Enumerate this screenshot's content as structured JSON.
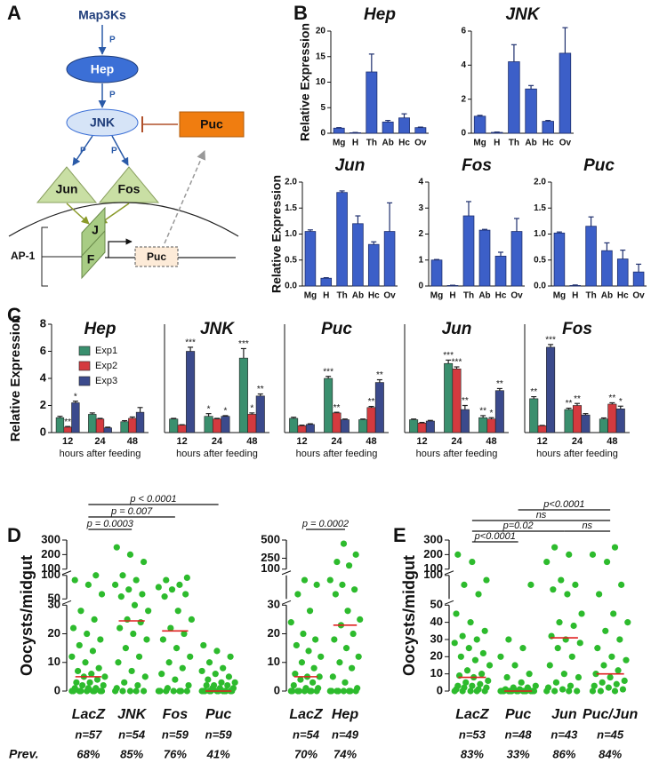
{
  "panel_labels": [
    "A",
    "B",
    "C",
    "D",
    "E"
  ],
  "diagram": {
    "map3ks": "Map3Ks",
    "phospho": [
      "P",
      "P",
      "P",
      "P"
    ],
    "hep": "Hep",
    "jnk": "JNK",
    "puc": "Puc",
    "jun": "Jun",
    "fos": "Fos",
    "ap1": "AP-1",
    "j": "J",
    "f": "F",
    "puc_gene": "Puc"
  },
  "chart_data": [
    {
      "type": "bar",
      "title": "Hep",
      "y_label": "Relative Expression",
      "categories": [
        "Mg",
        "H",
        "Th",
        "Ab",
        "Hc",
        "Ov"
      ],
      "values": [
        1,
        0.1,
        12,
        2.2,
        3,
        1.1
      ],
      "errors": [
        0.1,
        0.05,
        3.5,
        0.3,
        0.8,
        0.1
      ],
      "color": "#3c5fc8",
      "ylim": [
        0,
        20
      ],
      "yticks": [
        0,
        5,
        10,
        15,
        20
      ]
    },
    {
      "type": "bar",
      "title": "JNK",
      "categories": [
        "Mg",
        "H",
        "Th",
        "Ab",
        "Hc",
        "Ov"
      ],
      "values": [
        1,
        0.05,
        4.2,
        2.6,
        0.7,
        4.7
      ],
      "errors": [
        0.05,
        0.02,
        1,
        0.2,
        0.05,
        1.5
      ],
      "color": "#3c5fc8",
      "ylim": [
        0,
        6
      ],
      "yticks": [
        0,
        2,
        4,
        6
      ]
    },
    {
      "type": "bar",
      "title": "Jun",
      "y_label": "Relative Expression",
      "categories": [
        "Mg",
        "H",
        "Th",
        "Ab",
        "Hc",
        "Ov"
      ],
      "values": [
        1.05,
        0.15,
        1.8,
        1.2,
        0.8,
        1.05
      ],
      "errors": [
        0.03,
        0.01,
        0.03,
        0.15,
        0.05,
        0.55
      ],
      "color": "#3c5fc8",
      "ylim": [
        0,
        2
      ],
      "yticks": [
        {
          "value": 0,
          "label": "0.0"
        },
        0.5,
        {
          "value": 1,
          "label": "1.0"
        },
        1.5,
        {
          "value": 2,
          "label": "2.0"
        }
      ]
    },
    {
      "type": "bar",
      "title": "Fos",
      "categories": [
        "Mg",
        "H",
        "Th",
        "Ab",
        "Hc",
        "Ov"
      ],
      "values": [
        1,
        0.02,
        2.7,
        2.15,
        1.15,
        2.1
      ],
      "errors": [
        0.02,
        0.01,
        0.55,
        0.03,
        0.15,
        0.5
      ],
      "color": "#3c5fc8",
      "ylim": [
        0,
        4
      ],
      "yticks": [
        0,
        1,
        2,
        3,
        4
      ]
    },
    {
      "type": "bar",
      "title": "Puc",
      "categories": [
        "Mg",
        "H",
        "Th",
        "Ab",
        "Hc",
        "Ov"
      ],
      "values": [
        1.02,
        0.01,
        1.15,
        0.68,
        0.52,
        0.27
      ],
      "errors": [
        0.02,
        0.01,
        0.18,
        0.15,
        0.17,
        0.15
      ],
      "color": "#3c5fc8",
      "ylim": [
        0,
        2
      ],
      "yticks": [
        {
          "value": 0,
          "label": "0.0"
        },
        0.5,
        {
          "value": 1,
          "label": "1.0"
        },
        1.5,
        {
          "value": 2,
          "label": "2.0"
        }
      ]
    },
    {
      "type": "grouped_bar",
      "title": "Hep",
      "y_label": "Relative Expression",
      "x_label": "hours after feeding",
      "categories": [
        "12",
        "24",
        "48"
      ],
      "ylim": [
        0,
        8
      ],
      "yticks": [
        0,
        2,
        4,
        6,
        8
      ],
      "legend": "upper right",
      "series": [
        {
          "name": "Exp1",
          "color": "#3a8f6e",
          "values": [
            1.1,
            1.35,
            0.8
          ],
          "errors": [
            0.1,
            0.1,
            0.08
          ],
          "annotations": [
            null,
            null,
            null
          ]
        },
        {
          "name": "Exp2",
          "color": "#d43a3f",
          "values": [
            0.4,
            1.0,
            1.05
          ],
          "errors": [
            0.05,
            0.05,
            0.1
          ],
          "annotations": [
            "**",
            null,
            null
          ]
        },
        {
          "name": "Exp3",
          "color": "#3b4a8c",
          "values": [
            2.2,
            0.35,
            1.5
          ],
          "errors": [
            0.12,
            0.05,
            0.35
          ],
          "annotations": [
            "*",
            null,
            null
          ]
        }
      ]
    },
    {
      "type": "grouped_bar",
      "title": "JNK",
      "x_label": "hours after feeding",
      "categories": [
        "12",
        "24",
        "48"
      ],
      "ylim": [
        0,
        8
      ],
      "series": [
        {
          "color": "#3a8f6e",
          "values": [
            1.0,
            1.2,
            5.5
          ],
          "errors": [
            0.05,
            0.2,
            0.7
          ],
          "annotations": [
            null,
            "*",
            "***"
          ]
        },
        {
          "color": "#d43a3f",
          "values": [
            0.55,
            1.0,
            1.35
          ],
          "errors": [
            0.03,
            0.05,
            0.1
          ],
          "annotations": [
            null,
            null,
            "*"
          ]
        },
        {
          "color": "#3b4a8c",
          "values": [
            6.0,
            1.2,
            2.7
          ],
          "errors": [
            0.3,
            0.05,
            0.15
          ],
          "annotations": [
            "***",
            "*",
            "**"
          ]
        }
      ]
    },
    {
      "type": "grouped_bar",
      "title": "Puc",
      "x_label": "hours after feeding",
      "categories": [
        "12",
        "24",
        "48"
      ],
      "ylim": [
        0,
        8
      ],
      "series": [
        {
          "color": "#3a8f6e",
          "values": [
            1.05,
            4.0,
            0.95
          ],
          "errors": [
            0.08,
            0.15,
            0.05
          ],
          "annotations": [
            null,
            "***",
            null
          ]
        },
        {
          "color": "#d43a3f",
          "values": [
            0.5,
            1.45,
            1.85
          ],
          "errors": [
            0.05,
            0.05,
            0.08
          ],
          "annotations": [
            null,
            "**",
            "**"
          ]
        },
        {
          "color": "#3b4a8c",
          "values": [
            0.6,
            0.95,
            3.7
          ],
          "errors": [
            0.05,
            0.05,
            0.2
          ],
          "annotations": [
            null,
            null,
            "**"
          ]
        }
      ]
    },
    {
      "type": "grouped_bar",
      "title": "Jun",
      "x_label": "hours after feeding",
      "categories": [
        "12",
        "24",
        "48"
      ],
      "ylim": [
        0,
        8
      ],
      "series": [
        {
          "color": "#3a8f6e",
          "values": [
            0.95,
            5.1,
            1.1
          ],
          "errors": [
            0.05,
            0.25,
            0.15
          ],
          "annotations": [
            null,
            "***",
            "**"
          ]
        },
        {
          "color": "#d43a3f",
          "values": [
            0.7,
            4.7,
            1.0
          ],
          "errors": [
            0.05,
            0.15,
            0.1
          ],
          "annotations": [
            null,
            "***",
            "*"
          ]
        },
        {
          "color": "#3b4a8c",
          "values": [
            0.85,
            1.7,
            3.1
          ],
          "errors": [
            0.05,
            0.3,
            0.15
          ],
          "annotations": [
            null,
            "**",
            "**"
          ]
        }
      ]
    },
    {
      "type": "grouped_bar",
      "title": "Fos",
      "x_label": "hours after feeding",
      "categories": [
        "12",
        "24",
        "48"
      ],
      "ylim": [
        0,
        8
      ],
      "series": [
        {
          "color": "#3a8f6e",
          "values": [
            2.5,
            1.7,
            1.0
          ],
          "errors": [
            0.15,
            0.1,
            0.08
          ],
          "annotations": [
            "**",
            "**",
            null
          ]
        },
        {
          "color": "#d43a3f",
          "values": [
            0.5,
            2.0,
            2.1
          ],
          "errors": [
            0.03,
            0.15,
            0.1
          ],
          "annotations": [
            null,
            "**",
            "**"
          ]
        },
        {
          "color": "#3b4a8c",
          "values": [
            6.3,
            1.3,
            1.75
          ],
          "errors": [
            0.2,
            0.1,
            0.2
          ],
          "annotations": [
            "***",
            null,
            "*"
          ]
        }
      ]
    },
    {
      "type": "dot_plot",
      "y_label": "Oocysts/midgut",
      "row_label": "Prev.",
      "color": "#2dbb2d",
      "median_color": "#e02020",
      "ysegments": [
        {
          "ylim": [
            0,
            30
          ],
          "yticks": [
            0,
            10,
            20,
            30
          ]
        },
        {
          "ylim": [
            50,
            100
          ],
          "yticks": [
            50,
            100
          ]
        },
        {
          "ylim": [
            100,
            300
          ],
          "yticks": [
            100,
            200,
            300
          ]
        }
      ],
      "comparisons": [
        "p = 0.0003",
        "p = 0.007",
        "p < 0.0001"
      ],
      "groups": [
        {
          "name": "LacZ",
          "n_label": "n=57",
          "prev_label": "68%",
          "median": 5,
          "values": [
            0,
            0,
            0,
            0,
            0,
            0,
            0,
            0,
            0,
            1,
            1,
            1,
            2,
            2,
            3,
            3,
            4,
            5,
            5,
            6,
            7,
            8,
            10,
            12,
            14,
            16,
            18,
            20,
            22,
            25,
            28,
            60,
            80,
            90,
            100
          ]
        },
        {
          "name": "JNK",
          "n_label": "n=54",
          "prev_label": "85%",
          "median": 24.5,
          "values": [
            0,
            0,
            0,
            0,
            0,
            1,
            2,
            3,
            5,
            7,
            10,
            12,
            15,
            18,
            20,
            22,
            24,
            25,
            28,
            30,
            55,
            60,
            70,
            80,
            90,
            100,
            150,
            200,
            250
          ]
        },
        {
          "name": "Fos",
          "n_label": "n=59",
          "prev_label": "76%",
          "median": 21,
          "values": [
            0,
            0,
            0,
            0,
            0,
            0,
            0,
            1,
            2,
            4,
            6,
            8,
            10,
            12,
            15,
            18,
            20,
            22,
            25,
            28,
            55,
            60,
            70,
            75,
            80,
            90,
            95
          ]
        },
        {
          "name": "Puc",
          "n_label": "n=59",
          "prev_label": "41%",
          "median": 0,
          "values": [
            0,
            0,
            0,
            0,
            0,
            0,
            0,
            0,
            0,
            0,
            0,
            0,
            1,
            1,
            1,
            2,
            2,
            2,
            3,
            3,
            4,
            5,
            6,
            7,
            8,
            10,
            12,
            14,
            16
          ]
        }
      ]
    },
    {
      "type": "dot_plot",
      "color": "#2dbb2d",
      "median_color": "#e02020",
      "ysegments": [
        {
          "ylim": [
            0,
            30
          ],
          "yticks": [
            0,
            10,
            20,
            30
          ]
        },
        {
          "ylim": [
            50,
            100
          ]
        },
        {
          "ylim": [
            100,
            500
          ],
          "yticks": [
            100,
            250,
            500
          ]
        }
      ],
      "comparisons": [
        "p = 0.0002"
      ],
      "groups": [
        {
          "name": "LacZ",
          "n_label": "n=54",
          "prev_label": "70%",
          "median": 5,
          "values": [
            0,
            0,
            0,
            0,
            0,
            0,
            0,
            0,
            1,
            1,
            2,
            3,
            4,
            5,
            5,
            6,
            8,
            10,
            12,
            14,
            16,
            18,
            20,
            24,
            28,
            60,
            80,
            90
          ]
        },
        {
          "name": "Hep",
          "n_label": "n=49",
          "prev_label": "74%",
          "median": 23,
          "values": [
            0,
            0,
            0,
            0,
            0,
            0,
            0,
            0,
            1,
            3,
            5,
            8,
            10,
            12,
            15,
            18,
            20,
            23,
            25,
            28,
            60,
            70,
            80,
            90,
            150,
            200,
            300,
            450
          ]
        }
      ]
    },
    {
      "type": "dot_plot",
      "y_label": "Oocysts/midgut",
      "color": "#2dbb2d",
      "median_color": "#e02020",
      "ysegments": [
        {
          "ylim": [
            0,
            50
          ],
          "yticks": [
            0,
            10,
            20,
            30,
            40,
            50
          ]
        },
        {
          "ylim": [
            50,
            100
          ],
          "yticks": [
            100
          ]
        },
        {
          "ylim": [
            100,
            300
          ],
          "yticks": [
            100,
            200,
            300
          ]
        }
      ],
      "comparisons": [
        "p<0.0001",
        "ns",
        "p=0.02",
        "ns",
        "p<0.0001"
      ],
      "groups": [
        {
          "name": "LacZ",
          "n_label": "n=53",
          "prev_label": "83%",
          "median": 8,
          "values": [
            0,
            0,
            0,
            0,
            0,
            1,
            1,
            2,
            2,
            3,
            3,
            4,
            5,
            6,
            8,
            9,
            10,
            12,
            15,
            18,
            20,
            22,
            25,
            28,
            30,
            32,
            35,
            40,
            45,
            60,
            80,
            90,
            150,
            200
          ]
        },
        {
          "name": "Puc",
          "n_label": "n=48",
          "prev_label": "33%",
          "median": 0,
          "values": [
            0,
            0,
            0,
            0,
            0,
            0,
            0,
            0,
            0,
            0,
            0,
            0,
            0,
            0,
            1,
            1,
            2,
            2,
            3,
            5,
            8,
            10,
            15,
            20,
            25,
            30,
            80
          ]
        },
        {
          "name": "Jun",
          "n_label": "n=43",
          "prev_label": "86%",
          "median": 31,
          "values": [
            0,
            0,
            0,
            0,
            1,
            2,
            3,
            5,
            8,
            10,
            15,
            20,
            25,
            28,
            30,
            32,
            38,
            40,
            45,
            60,
            70,
            80,
            90,
            150,
            200,
            250
          ]
        },
        {
          "name": "Puc/Jun",
          "n_label": "n=45",
          "prev_label": "84%",
          "median": 10,
          "values": [
            0,
            0,
            0,
            1,
            2,
            3,
            4,
            5,
            6,
            8,
            10,
            12,
            15,
            18,
            20,
            25,
            30,
            35,
            40,
            45,
            60,
            80,
            150,
            200,
            250
          ]
        }
      ]
    }
  ]
}
